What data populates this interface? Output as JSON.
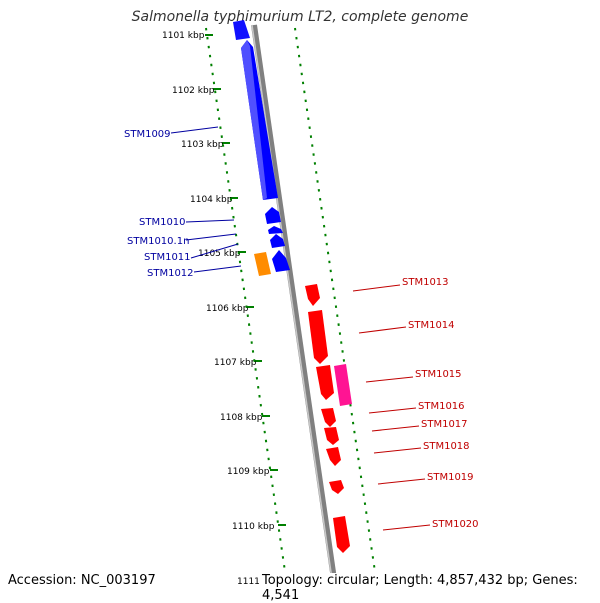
{
  "map": {
    "title": "Salmonella typhimurium LT2, complete genome",
    "accession": "Accession: NC_003197",
    "summary": "Topology: circular; Length: 4,857,432 bp; Genes: 4,541",
    "bottom_tick_partial": "1111"
  },
  "kbp_ticks": [
    "1101 kbp",
    "1102 kbp",
    "1103 kbp",
    "1104 kbp",
    "1105 kbp",
    "1106 kbp",
    "1107 kbp",
    "1108 kbp",
    "1109 kbp",
    "1110 kbp"
  ],
  "left_genes": [
    "STM1009",
    "STM1010",
    "STM1010.1n",
    "STM1011",
    "STM1012"
  ],
  "right_genes": [
    "STM1013",
    "STM1014",
    "STM1015",
    "STM1016",
    "STM1017",
    "STM1018",
    "STM1019",
    "STM1020"
  ],
  "colors": {
    "minus_strand": "#0000ff",
    "plus_strand": "#ff0000",
    "orange_gene": "#ff8c00",
    "pink_gene": "#ff1493",
    "backbone": "#808080",
    "dots": "#008000",
    "left_label": "#0000a0",
    "right_label": "#c00000"
  }
}
